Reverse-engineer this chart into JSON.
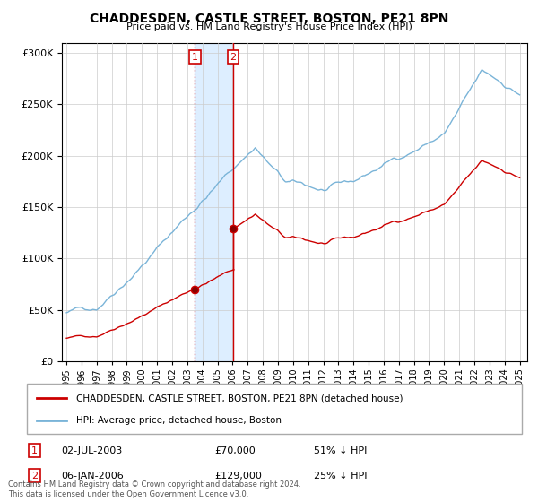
{
  "title": "CHADDESDEN, CASTLE STREET, BOSTON, PE21 8PN",
  "subtitle": "Price paid vs. HM Land Registry's House Price Index (HPI)",
  "legend_line1": "CHADDESDEN, CASTLE STREET, BOSTON, PE21 8PN (detached house)",
  "legend_line2": "HPI: Average price, detached house, Boston",
  "transaction1_date": "02-JUL-2003",
  "transaction1_price": "£70,000",
  "transaction1_hpi": "51% ↓ HPI",
  "transaction2_date": "06-JAN-2006",
  "transaction2_price": "£129,000",
  "transaction2_hpi": "25% ↓ HPI",
  "footer": "Contains HM Land Registry data © Crown copyright and database right 2024.\nThis data is licensed under the Open Government Licence v3.0.",
  "hpi_color": "#7ab4d8",
  "price_color": "#cc0000",
  "vline1_color": "#dd4444",
  "vline2_color": "#cc0000",
  "shade_color": "#ddeeff",
  "annotation_box_color": "#cc0000",
  "ylim": [
    0,
    310000
  ],
  "background_color": "#ffffff",
  "grid_color": "#cccccc",
  "t1": 2003.5,
  "t2": 2006.0417,
  "price1": 70000,
  "price2": 129000
}
